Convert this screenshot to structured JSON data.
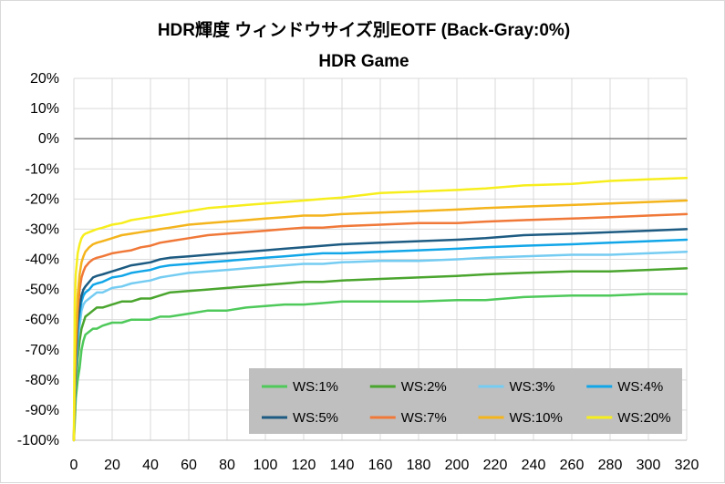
{
  "chart_data": {
    "type": "line",
    "title": "HDR輝度 ウィンドウサイズ別EOTF (Back-Gray:0%)",
    "subtitle": "HDR Game",
    "xlabel": "",
    "ylabel": "",
    "xlim": [
      0,
      320
    ],
    "ylim": [
      -100,
      20
    ],
    "x_ticks": [
      "0",
      "20",
      "40",
      "60",
      "80",
      "100",
      "120",
      "140",
      "160",
      "180",
      "200",
      "220",
      "240",
      "260",
      "280",
      "300",
      "320"
    ],
    "y_ticks": [
      "20%",
      "10%",
      "0%",
      "-10%",
      "-20%",
      "-30%",
      "-40%",
      "-50%",
      "-60%",
      "-70%",
      "-80%",
      "-90%",
      "-100%"
    ],
    "grid": true,
    "legend_position": "bottom-right",
    "zero_line_color": "#808080",
    "x": [
      0,
      0.5,
      1,
      2,
      3,
      4,
      5,
      6,
      8,
      10,
      12,
      15,
      20,
      25,
      30,
      35,
      40,
      45,
      50,
      60,
      70,
      80,
      90,
      100,
      110,
      120,
      130,
      140,
      160,
      180,
      200,
      215,
      235,
      260,
      280,
      300,
      320
    ],
    "series": [
      {
        "name": "WS:1%",
        "color": "#4ec95a",
        "values": [
          -100,
          -94,
          -86,
          -80,
          -76,
          -70,
          -67,
          -65,
          -64,
          -63,
          -63,
          -62,
          -61,
          -61,
          -60,
          -60,
          -60,
          -59,
          -59,
          -58,
          -57,
          -57,
          -56,
          -55.5,
          -55,
          -55,
          -54.5,
          -54,
          -54,
          -54,
          -53.5,
          -53.5,
          -52.5,
          -52,
          -52,
          -51.5,
          -51.5
        ]
      },
      {
        "name": "WS:2%",
        "color": "#4aa52e",
        "values": [
          -100,
          -91,
          -82,
          -73,
          -67,
          -63,
          -61,
          -59,
          -58,
          -57,
          -56,
          -56,
          -55,
          -54,
          -54,
          -53,
          -53,
          -52,
          -51,
          -50.5,
          -50,
          -49.5,
          -49,
          -48.5,
          -48,
          -47.5,
          -47.5,
          -47,
          -46.5,
          -46,
          -45.5,
          -45,
          -44.5,
          -44,
          -44,
          -43.5,
          -43
        ]
      },
      {
        "name": "WS:3%",
        "color": "#75ccf2",
        "values": [
          -100,
          -88,
          -79,
          -67,
          -62,
          -57,
          -55,
          -54,
          -53,
          -52,
          -51,
          -51,
          -49.5,
          -49,
          -48,
          -47.5,
          -47,
          -46,
          -45.5,
          -44.5,
          -44,
          -43.5,
          -43,
          -42.5,
          -42,
          -41.5,
          -41.5,
          -41,
          -40.5,
          -40.5,
          -40,
          -39.5,
          -39,
          -38.5,
          -38.5,
          -38,
          -37.5
        ]
      },
      {
        "name": "WS:4%",
        "color": "#11a6e8",
        "values": [
          -100,
          -86,
          -76,
          -64,
          -58,
          -54,
          -52,
          -51,
          -50,
          -48.5,
          -48,
          -47.5,
          -46,
          -45.5,
          -44.5,
          -44,
          -43.5,
          -42.5,
          -42,
          -41.5,
          -41,
          -40.5,
          -40,
          -39.5,
          -39,
          -38.5,
          -38,
          -38,
          -37.5,
          -37,
          -36.5,
          -36,
          -35.5,
          -35,
          -34.5,
          -34,
          -33.5
        ]
      },
      {
        "name": "WS:5%",
        "color": "#1d5b82",
        "values": [
          -100,
          -85,
          -74,
          -61,
          -56,
          -52,
          -50,
          -49,
          -47.5,
          -46,
          -45.5,
          -45,
          -44,
          -43,
          -42,
          -41.5,
          -41,
          -40,
          -39.5,
          -39,
          -38.5,
          -38,
          -37.5,
          -37,
          -36.5,
          -36,
          -35.5,
          -35,
          -34.5,
          -34,
          -33.5,
          -33,
          -32,
          -31.5,
          -31,
          -30.5,
          -30
        ]
      },
      {
        "name": "WS:7%",
        "color": "#f07838",
        "values": [
          -100,
          -82,
          -70,
          -57,
          -50,
          -46,
          -44,
          -42.5,
          -41,
          -40,
          -39.5,
          -39,
          -38,
          -37.5,
          -37,
          -36,
          -35.5,
          -34.5,
          -34,
          -33,
          -32,
          -31.5,
          -31,
          -30.5,
          -30,
          -29.5,
          -29.5,
          -29,
          -28.5,
          -28,
          -28,
          -27.5,
          -27,
          -26.5,
          -26,
          -25.5,
          -25
        ]
      },
      {
        "name": "WS:10%",
        "color": "#f4b41c",
        "values": [
          -100,
          -78,
          -66,
          -52,
          -45,
          -41,
          -39,
          -37.5,
          -36,
          -35,
          -34.5,
          -34,
          -33,
          -32,
          -31.5,
          -31,
          -30.5,
          -30,
          -29.5,
          -28.5,
          -28,
          -27.5,
          -27,
          -26.5,
          -26,
          -25.5,
          -25.5,
          -25,
          -24.5,
          -24,
          -23.5,
          -23,
          -22.5,
          -22,
          -21.5,
          -21,
          -20.5
        ]
      },
      {
        "name": "WS:20%",
        "color": "#f7ee1d",
        "values": [
          -100,
          -55,
          -45,
          -38,
          -35,
          -33,
          -32,
          -31.5,
          -31,
          -30.5,
          -30,
          -29.5,
          -28.5,
          -28,
          -27,
          -26.5,
          -26,
          -25.5,
          -25,
          -24,
          -23,
          -22.5,
          -22,
          -21.5,
          -21,
          -20.5,
          -20,
          -19.5,
          -18,
          -17.5,
          -17,
          -16.5,
          -15.5,
          -15,
          -14,
          -13.5,
          -13
        ]
      }
    ]
  }
}
